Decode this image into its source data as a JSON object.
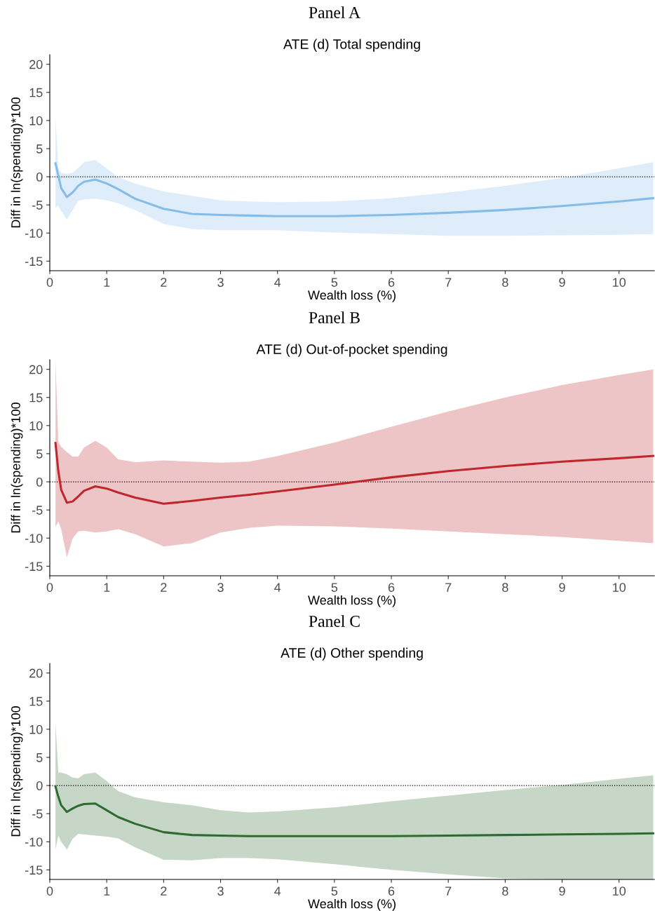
{
  "chart_data": [
    {
      "type": "line",
      "title": "Panel A",
      "subtitle": "ATE (d) Total spending",
      "xlabel": "Wealth loss (%)",
      "ylabel": "Diff in ln(spending)*100",
      "x": [
        0.1,
        0.15,
        0.2,
        0.3,
        0.4,
        0.5,
        0.6,
        0.8,
        1.0,
        1.2,
        1.5,
        2,
        2.5,
        3,
        3.5,
        4,
        5,
        6,
        7,
        8,
        9,
        10,
        10.6
      ],
      "series": [
        {
          "color": "#85bde8",
          "values": [
            2.4,
            0.2,
            -2.0,
            -3.6,
            -2.8,
            -1.6,
            -0.9,
            -0.5,
            -1.2,
            -2.2,
            -3.9,
            -5.7,
            -6.6,
            -6.8,
            -6.9,
            -7.0,
            -7.0,
            -6.8,
            -6.4,
            -5.9,
            -5.2,
            -4.4,
            -3.8
          ],
          "lower": [
            -5.5,
            -5.1,
            -6.1,
            -7.6,
            -5.9,
            -4.3,
            -4.0,
            -3.9,
            -4.2,
            -4.7,
            -5.9,
            -8.4,
            -9.3,
            -9.5,
            -9.5,
            -9.5,
            -9.9,
            -10.2,
            -10.5,
            -10.5,
            -10.4,
            -10.3,
            -10.2
          ],
          "upper": [
            10.5,
            1.5,
            0.7,
            0.5,
            0.7,
            1.6,
            2.6,
            3.0,
            1.5,
            -0.1,
            -1.2,
            -2.6,
            -3.4,
            -4.2,
            -4.4,
            -4.5,
            -4.4,
            -3.8,
            -2.8,
            -1.6,
            -0.2,
            1.5,
            2.6
          ]
        }
      ],
      "xlim": [
        0,
        10.62
      ],
      "ylim": [
        -16.7,
        21.7
      ],
      "xticks": [
        0,
        1,
        2,
        3,
        4,
        5,
        6,
        7,
        8,
        9,
        10
      ],
      "yticks": [
        -15,
        -10,
        -5,
        0,
        5,
        10,
        15,
        20
      ],
      "ref_lines": [
        {
          "axis": "y",
          "value": 0,
          "color": "#000000",
          "line_style": "dotted"
        }
      ]
    },
    {
      "type": "line",
      "title": "Panel B",
      "subtitle": "ATE (d) Out-of-pocket spending",
      "xlabel": "Wealth loss (%)",
      "ylabel": "Diff in ln(spending)*100",
      "x": [
        0.1,
        0.15,
        0.2,
        0.3,
        0.4,
        0.5,
        0.6,
        0.8,
        1.0,
        1.2,
        1.5,
        2,
        2.5,
        3,
        3.5,
        4,
        5,
        6,
        7,
        8,
        9,
        10,
        10.6
      ],
      "series": [
        {
          "color": "#c0272d",
          "values": [
            6.9,
            1.9,
            -1.4,
            -3.7,
            -3.5,
            -2.6,
            -1.6,
            -0.8,
            -1.2,
            -1.9,
            -2.8,
            -3.9,
            -3.4,
            -2.8,
            -2.3,
            -1.7,
            -0.5,
            0.8,
            1.9,
            2.8,
            3.6,
            4.2,
            4.6
          ],
          "lower": [
            -8.0,
            -7.0,
            -8.4,
            -13.4,
            -10.1,
            -8.8,
            -8.7,
            -9.0,
            -8.8,
            -8.4,
            -9.3,
            -11.5,
            -10.9,
            -9.0,
            -8.2,
            -7.8,
            -7.9,
            -8.3,
            -8.8,
            -9.3,
            -9.8,
            -10.5,
            -10.9
          ],
          "upper": [
            21.5,
            7.1,
            6.2,
            5.3,
            4.5,
            4.5,
            6.1,
            7.3,
            6.1,
            4.0,
            3.5,
            3.8,
            3.6,
            3.4,
            3.6,
            4.6,
            7.0,
            9.8,
            12.5,
            15.0,
            17.2,
            19.0,
            20.0
          ]
        }
      ],
      "xlim": [
        0,
        10.62
      ],
      "ylim": [
        -16.7,
        21.7
      ],
      "xticks": [
        0,
        1,
        2,
        3,
        4,
        5,
        6,
        7,
        8,
        9,
        10
      ],
      "yticks": [
        -15,
        -10,
        -5,
        0,
        5,
        10,
        15,
        20
      ],
      "ref_lines": [
        {
          "axis": "y",
          "value": 0,
          "color": "#000000",
          "line_style": "dotted"
        }
      ]
    },
    {
      "type": "line",
      "title": "Panel C",
      "subtitle": "ATE (d) Other spending",
      "xlabel": "Wealth loss (%)",
      "ylabel": "Diff in ln(spending)*100",
      "x": [
        0.1,
        0.15,
        0.2,
        0.3,
        0.4,
        0.5,
        0.6,
        0.8,
        1.0,
        1.2,
        1.5,
        2,
        2.5,
        3,
        3.5,
        4,
        5,
        6,
        7,
        8,
        9,
        10,
        10.6
      ],
      "series": [
        {
          "color": "#2e6b30",
          "values": [
            -0.2,
            -2.0,
            -3.5,
            -4.7,
            -4.1,
            -3.6,
            -3.3,
            -3.2,
            -4.4,
            -5.6,
            -6.8,
            -8.3,
            -8.8,
            -8.9,
            -9.0,
            -9.0,
            -9.0,
            -9.0,
            -8.9,
            -8.8,
            -8.7,
            -8.6,
            -8.5
          ],
          "lower": [
            -11.4,
            -8.9,
            -10.0,
            -11.4,
            -9.5,
            -8.6,
            -8.7,
            -8.9,
            -9.1,
            -9.4,
            -11.0,
            -13.2,
            -13.3,
            -12.9,
            -12.9,
            -13.1,
            -14.0,
            -15.0,
            -15.8,
            -16.5,
            -16.7,
            -16.7,
            -16.7
          ],
          "upper": [
            11.2,
            2.3,
            2.3,
            2.0,
            1.4,
            1.3,
            2.0,
            2.3,
            0.8,
            -1.0,
            -2.1,
            -3.0,
            -3.5,
            -4.4,
            -4.8,
            -4.6,
            -3.9,
            -2.8,
            -1.8,
            -0.8,
            0.1,
            1.2,
            1.8
          ]
        }
      ],
      "xlim": [
        0,
        10.62
      ],
      "ylim": [
        -16.7,
        21.7
      ],
      "xticks": [
        0,
        1,
        2,
        3,
        4,
        5,
        6,
        7,
        8,
        9,
        10
      ],
      "yticks": [
        -15,
        -10,
        -5,
        0,
        5,
        10,
        15,
        20
      ],
      "ref_lines": [
        {
          "axis": "y",
          "value": 0,
          "color": "#000000",
          "line_style": "dotted"
        }
      ]
    }
  ]
}
